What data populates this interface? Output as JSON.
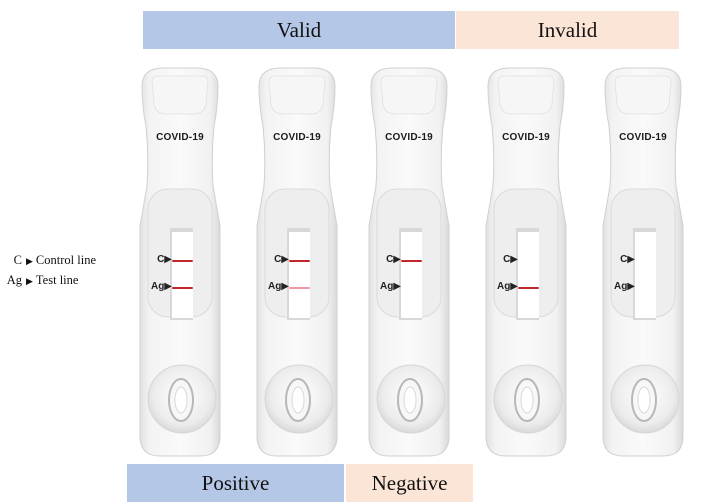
{
  "headers": {
    "valid": "Valid",
    "invalid": "Invalid"
  },
  "footers": {
    "positive": "Positive",
    "negative": "Negative"
  },
  "legend": [
    {
      "abbr": "C",
      "arrow": "▶",
      "label": "Control line"
    },
    {
      "abbr": "Ag",
      "arrow": "▶",
      "label": "Test line"
    }
  ],
  "colors": {
    "valid_fill": "#b4c7e7",
    "invalid_fill": "#fbe5d6",
    "strong_line": "#c0262d",
    "faint_line": "#ef9aa3"
  },
  "cassettes": [
    {
      "brand": "COVID-19",
      "c_mark": "C▶",
      "ag_mark": "Ag▶",
      "control_line": "strong",
      "test_line": "strong"
    },
    {
      "brand": "COVID-19",
      "c_mark": "C▶",
      "ag_mark": "Ag▶",
      "control_line": "strong",
      "test_line": "faint"
    },
    {
      "brand": "COVID-19",
      "c_mark": "C▶",
      "ag_mark": "Ag▶",
      "control_line": "strong",
      "test_line": "none"
    },
    {
      "brand": "COVID-19",
      "c_mark": "C▶",
      "ag_mark": "Ag▶",
      "control_line": "none",
      "test_line": "strong"
    },
    {
      "brand": "COVID-19",
      "c_mark": "C▶",
      "ag_mark": "Ag▶",
      "control_line": "none",
      "test_line": "none"
    }
  ]
}
